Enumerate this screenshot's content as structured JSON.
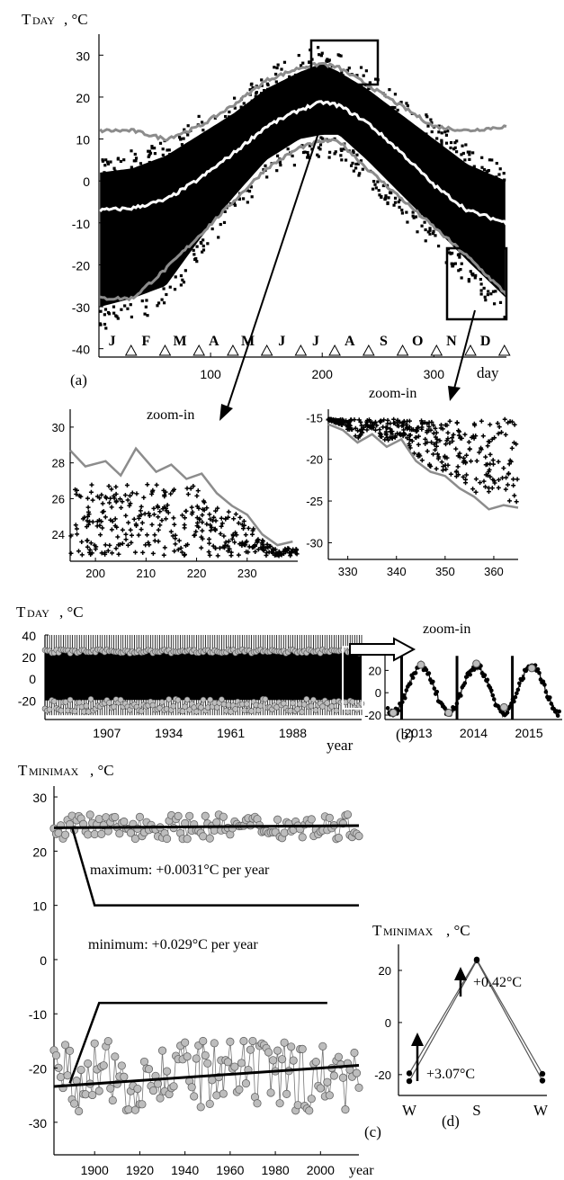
{
  "chart_data": [
    {
      "panel": "(a)",
      "type": "scatter",
      "title": "",
      "ylabel": "T_DAY, °C",
      "xlabel": "day",
      "xlim": [
        0,
        365
      ],
      "ylim": [
        -42,
        35
      ],
      "yticks": [
        "30",
        "20",
        "10",
        "0",
        "-10",
        "-20",
        "-30",
        "-40"
      ],
      "xticks": [
        "100",
        "200",
        "300"
      ],
      "months": [
        "J",
        "F",
        "M",
        "A",
        "M",
        "J",
        "J",
        "A",
        "S",
        "O",
        "N",
        "D"
      ],
      "series": [
        {
          "kind": "mean",
          "x": [
            1,
            30,
            60,
            90,
            120,
            150,
            180,
            200,
            215,
            240,
            270,
            300,
            330,
            365
          ],
          "values": [
            -7,
            -6.5,
            -4.5,
            0.5,
            6.5,
            13,
            17,
            18.8,
            18,
            14,
            7,
            -1,
            -7,
            -10
          ]
        },
        {
          "kind": "max",
          "x": [
            1,
            30,
            60,
            90,
            120,
            150,
            180,
            200,
            215,
            240,
            270,
            300,
            330,
            365
          ],
          "values": [
            12,
            12,
            10,
            13,
            18,
            24,
            27,
            28,
            27,
            23,
            18,
            13,
            12,
            13
          ]
        },
        {
          "kind": "min",
          "x": [
            1,
            30,
            60,
            90,
            120,
            150,
            180,
            200,
            215,
            240,
            270,
            300,
            330,
            365
          ],
          "values": [
            -28,
            -28,
            -21,
            -13,
            -5,
            3,
            8,
            9.5,
            9.5,
            3,
            -4,
            -11,
            -18,
            -27
          ]
        },
        {
          "kind": "upper-envelope",
          "x": [
            1,
            30,
            60,
            90,
            120,
            150,
            180,
            200,
            215,
            240,
            270,
            300,
            330,
            365
          ],
          "values": [
            4,
            5,
            8,
            13,
            18,
            24,
            28,
            30,
            28,
            24,
            18,
            12,
            6,
            2
          ]
        },
        {
          "kind": "lower-envelope",
          "x": [
            1,
            30,
            60,
            90,
            120,
            150,
            180,
            200,
            215,
            240,
            270,
            300,
            330,
            365
          ],
          "values": [
            -33,
            -31,
            -28,
            -17,
            -7,
            2,
            7,
            8,
            8,
            2,
            -6,
            -14,
            -22,
            -31
          ]
        }
      ],
      "zoom_label": "zoom-in"
    },
    {
      "panel": "zoom-summer",
      "type": "scatter",
      "xlim": [
        195,
        240
      ],
      "ylim": [
        22.5,
        31
      ],
      "yticks": [
        "30",
        "28",
        "26",
        "24"
      ],
      "xticks": [
        "200",
        "210",
        "220",
        "230"
      ],
      "series": [
        {
          "kind": "max",
          "x": [
            195,
            198,
            202,
            205,
            208,
            212,
            215,
            218,
            221,
            224,
            227,
            230,
            233,
            236,
            239
          ],
          "values": [
            28.7,
            27.8,
            28.1,
            27.3,
            28.8,
            27.5,
            27.9,
            27.1,
            27.4,
            26.3,
            25.6,
            25.1,
            24.0,
            23.4,
            23.6
          ]
        }
      ],
      "zoom_label": "zoom-in"
    },
    {
      "panel": "zoom-winter",
      "type": "scatter",
      "xlim": [
        326,
        365
      ],
      "ylim": [
        -32,
        -14
      ],
      "yticks": [
        "-15",
        "-20",
        "-25",
        "-30"
      ],
      "xticks": [
        "330",
        "340",
        "350",
        "360"
      ],
      "series": [
        {
          "kind": "min",
          "x": [
            326,
            329,
            332,
            335,
            338,
            341,
            344,
            347,
            350,
            353,
            356,
            359,
            362,
            365
          ],
          "values": [
            -15.8,
            -16.5,
            -18,
            -17,
            -18.5,
            -17.6,
            -20.2,
            -21.5,
            -22,
            -23.5,
            -24.5,
            -26,
            -25.5,
            -25.8
          ]
        }
      ]
    },
    {
      "panel": "(b)",
      "type": "scatter",
      "ylabel": "T_DAY, °C",
      "xlabel": "year",
      "xlim": [
        1880,
        2018
      ],
      "ylim": [
        -38,
        40
      ],
      "yticks": [
        "40",
        "20",
        "0",
        "-20"
      ],
      "xticks": [
        "1907",
        "1934",
        "1961",
        "1988"
      ],
      "series": [
        {
          "kind": "annual-max",
          "x": [
            1907,
            1934,
            1961,
            1988
          ],
          "values": [
            24,
            24,
            24,
            25
          ]
        },
        {
          "kind": "annual-min",
          "x": [
            1907,
            1934,
            1961,
            1988
          ],
          "values": [
            -22,
            -23,
            -22,
            -20
          ]
        }
      ]
    },
    {
      "panel": "zoom-2013-2015",
      "type": "line",
      "xlim": [
        2012.4,
        2015.6
      ],
      "ylim": [
        -24,
        34
      ],
      "yticks": [
        "20",
        "0",
        "-20"
      ],
      "xticks": [
        "2013",
        "2014",
        "2015"
      ],
      "zoom_label": "zoom-in"
    },
    {
      "panel": "(c)",
      "type": "scatter",
      "ylabel": "T_MINIMAX, °C",
      "xlabel": "year",
      "xlim": [
        1882,
        2017
      ],
      "ylim": [
        -36,
        32
      ],
      "yticks": [
        "30",
        "20",
        "10",
        "0",
        "-10",
        "-20",
        "-30"
      ],
      "xticks": [
        "1900",
        "1920",
        "1940",
        "1960",
        "1980",
        "2000"
      ],
      "series": [
        {
          "kind": "maximum",
          "trend": "+0.0031°C per year",
          "fit": [
            [
              1882,
              24.3
            ],
            [
              2017,
              24.7
            ]
          ]
        },
        {
          "kind": "minimum",
          "trend": "+0.029°C per year",
          "fit": [
            [
              1882,
              -23.4
            ],
            [
              2017,
              -19.5
            ]
          ]
        }
      ],
      "annotations": [
        "maximum: +0.0031°C per year",
        "minimum: +0.029°C per year"
      ]
    },
    {
      "panel": "(d)",
      "type": "line",
      "ylabel": "T_MINIMAX, °C",
      "categories": [
        "W",
        "S",
        "W"
      ],
      "ylim": [
        -28,
        30
      ],
      "yticks": [
        "20",
        "0",
        "-20"
      ],
      "series": [
        {
          "kind": "first",
          "values": [
            -22.5,
            23.8,
            -22.3
          ]
        },
        {
          "kind": "last",
          "values": [
            -19.5,
            24.2,
            -19.7
          ]
        }
      ],
      "annotations": [
        "+0.42°C",
        "+3.07°C"
      ]
    }
  ],
  "labels": {
    "a_ylabel_main": "T",
    "a_ylabel_sub": "DAY",
    "a_ylabel_unit": ", °C",
    "a_panel": "(a)",
    "a_xlabel": "day",
    "zoom1": "zoom-in",
    "zoom2": "zoom-in",
    "zoom3": "zoom-in",
    "b_ylabel_main": "T",
    "b_ylabel_sub": "DAY",
    "b_ylabel_unit": ", °C",
    "b_xlabel": "year",
    "b_panel": "(b)",
    "c_ylabel_main": "T",
    "c_ylabel_sub": "MINIMAX",
    "c_ylabel_unit": ", °C",
    "c_xlabel": "year",
    "c_panel": "(c)",
    "c_max_note": "maximum: +0.0031°C per year",
    "c_min_note": "minimum: +0.029°C per year",
    "d_ylabel_main": "T",
    "d_ylabel_sub": "MINIMAX",
    "d_ylabel_unit": ", °C",
    "d_panel": "(d)",
    "d_note_up": "+0.42°C",
    "d_note_low": "+3.07°C",
    "d_cats": [
      "W",
      "S",
      "W"
    ]
  },
  "colors": {
    "data": "#000000",
    "envelope": "#8c8c8c",
    "mean": "#ffffff",
    "marker": "#bdbdbd"
  }
}
